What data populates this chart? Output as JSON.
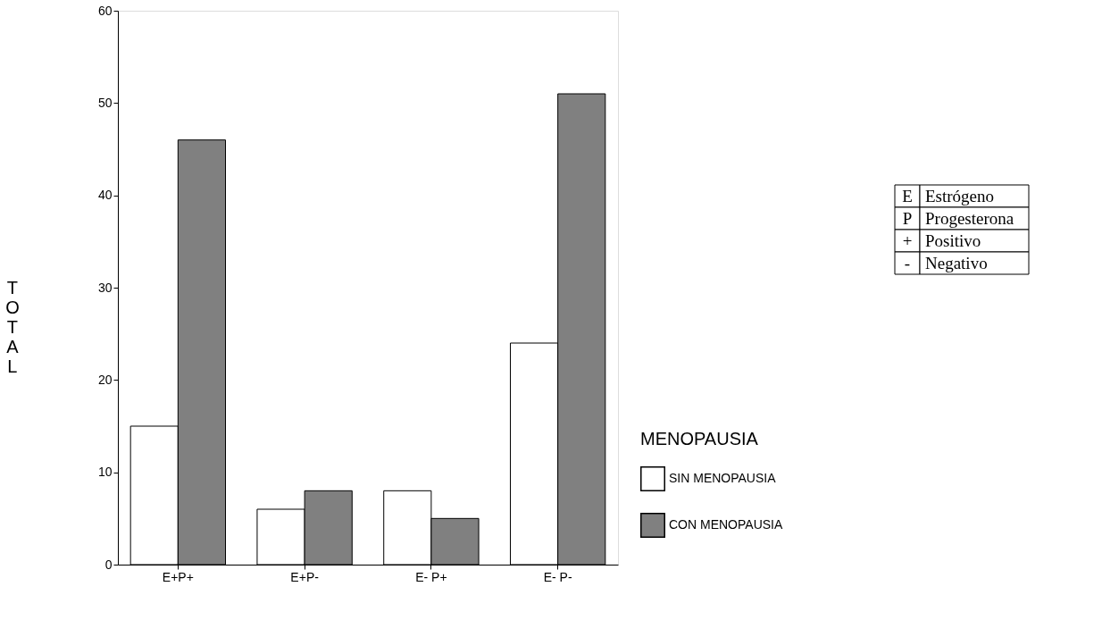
{
  "chart_data": {
    "type": "bar",
    "ylabel": "TOTAL",
    "legend_title": "MENOPAUSIA",
    "categories": [
      "E+P+",
      "E+P-",
      "E- P+",
      "E- P-"
    ],
    "series": [
      {
        "name": "SIN MENOPAUSIA",
        "color": "#ffffff",
        "values": [
          15,
          6,
          8,
          24
        ]
      },
      {
        "name": "CON MENOPAUSIA",
        "color": "#808080",
        "values": [
          46,
          8,
          5,
          51
        ]
      }
    ],
    "ylim": [
      0,
      60
    ],
    "yticks": [
      0,
      10,
      20,
      30,
      40,
      50,
      60
    ],
    "grid": false,
    "legend": "right",
    "annotations": [
      "E Estrógeno",
      "P Progesterona",
      "+ Positivo",
      "- Negativo"
    ]
  }
}
